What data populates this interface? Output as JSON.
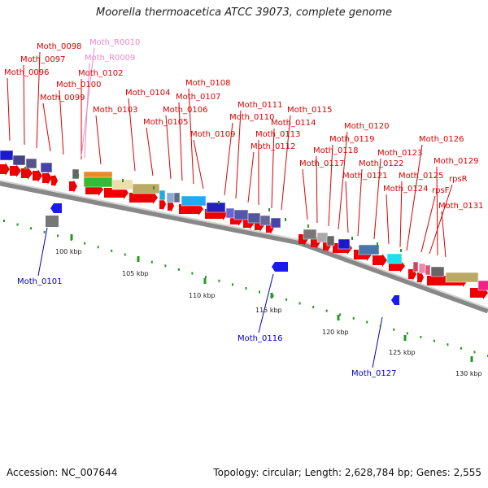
{
  "title": "Moorella thermoacetica ATCC 39073, complete genome",
  "accession": "Accession: NC_007644",
  "topology": "Topology: circular; Length: 2,628,784 bp; Genes: 2,555",
  "ruler_ticks": [
    {
      "kbp": 100,
      "label": "100 kbp"
    },
    {
      "kbp": 105,
      "label": "105 kbp"
    },
    {
      "kbp": 110,
      "label": "110 kbp"
    },
    {
      "kbp": 115,
      "label": "115 kbp"
    },
    {
      "kbp": 120,
      "label": "120 kbp"
    },
    {
      "kbp": 125,
      "label": "125 kbp"
    },
    {
      "kbp": 130,
      "label": "130 kbp"
    }
  ],
  "colors": {
    "forward_label": "#dd0000",
    "reverse_label": "#0000cc",
    "rna_label": "#ee88cc",
    "axis": "#888888",
    "tick": "#229922",
    "arrow": "#ee0000"
  },
  "forward_labels": [
    {
      "text": "Moth_0096"
    },
    {
      "text": "Moth_0097"
    },
    {
      "text": "Moth_0098"
    },
    {
      "text": "Moth_0099"
    },
    {
      "text": "Moth_0100"
    },
    {
      "text": "Moth_0102"
    },
    {
      "text": "Moth_0103"
    },
    {
      "text": "Moth_0104"
    },
    {
      "text": "Moth_0105"
    },
    {
      "text": "Moth_0106"
    },
    {
      "text": "Moth_0107"
    },
    {
      "text": "Moth_0108"
    },
    {
      "text": "Moth_0109"
    },
    {
      "text": "Moth_0110"
    },
    {
      "text": "Moth_0111"
    },
    {
      "text": "Moth_0112"
    },
    {
      "text": "Moth_0113"
    },
    {
      "text": "Moth_0114"
    },
    {
      "text": "Moth_0115"
    },
    {
      "text": "Moth_0117"
    },
    {
      "text": "Moth_0118"
    },
    {
      "text": "Moth_0119"
    },
    {
      "text": "Moth_0120"
    },
    {
      "text": "Moth_0121"
    },
    {
      "text": "Moth_0122"
    },
    {
      "text": "Moth_0123"
    },
    {
      "text": "Moth_0124"
    },
    {
      "text": "Moth_0125"
    },
    {
      "text": "Moth_0126"
    },
    {
      "text": "rpsF"
    },
    {
      "text": "rpsR"
    },
    {
      "text": "Moth_0129"
    },
    {
      "text": "Moth_0131"
    }
  ],
  "rna_labels": [
    {
      "text": "Moth_R0010"
    },
    {
      "text": "Moth_R0009"
    }
  ],
  "reverse_labels": [
    {
      "text": "Moth_0101"
    },
    {
      "text": "Moth_0116"
    },
    {
      "text": "Moth_0127"
    }
  ]
}
